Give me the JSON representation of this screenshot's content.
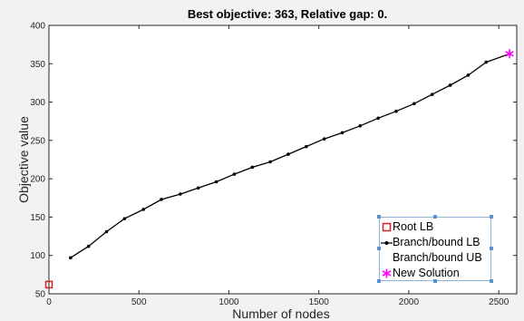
{
  "chart_data": {
    "type": "line",
    "title": "Best objective: 363, Relative gap: 0.",
    "xlabel": "Number of nodes",
    "ylabel": "Objective value",
    "xlim": [
      0,
      2600
    ],
    "ylim": [
      50,
      400
    ],
    "xticks": [
      0,
      500,
      1000,
      1500,
      2000,
      2500
    ],
    "yticks": [
      50,
      100,
      150,
      200,
      250,
      300,
      350,
      400
    ],
    "grid": false,
    "legend_position": "bottom-right",
    "series": [
      {
        "name": "Root LB",
        "marker": "square",
        "color": "#d62222",
        "points": [
          {
            "x": 0,
            "y": 62
          }
        ]
      },
      {
        "name": "Branch/bound LB",
        "marker": "dot",
        "color": "#000000",
        "points": [
          {
            "x": 120,
            "y": 97
          },
          {
            "x": 220,
            "y": 112
          },
          {
            "x": 320,
            "y": 131
          },
          {
            "x": 420,
            "y": 148
          },
          {
            "x": 525,
            "y": 160
          },
          {
            "x": 625,
            "y": 173
          },
          {
            "x": 730,
            "y": 180
          },
          {
            "x": 830,
            "y": 188
          },
          {
            "x": 930,
            "y": 196
          },
          {
            "x": 1030,
            "y": 206
          },
          {
            "x": 1130,
            "y": 215
          },
          {
            "x": 1230,
            "y": 222
          },
          {
            "x": 1330,
            "y": 232
          },
          {
            "x": 1430,
            "y": 242
          },
          {
            "x": 1530,
            "y": 252
          },
          {
            "x": 1630,
            "y": 260
          },
          {
            "x": 1730,
            "y": 269
          },
          {
            "x": 1830,
            "y": 279
          },
          {
            "x": 1930,
            "y": 288
          },
          {
            "x": 2030,
            "y": 298
          },
          {
            "x": 2130,
            "y": 310
          },
          {
            "x": 2230,
            "y": 322
          },
          {
            "x": 2330,
            "y": 335
          },
          {
            "x": 2430,
            "y": 352
          },
          {
            "x": 2560,
            "y": 363
          }
        ]
      },
      {
        "name": "Branch/bound UB",
        "marker": "none",
        "color": "#000000",
        "points": []
      },
      {
        "name": "New Solution",
        "marker": "asterisk",
        "color": "#ff00ff",
        "points": [
          {
            "x": 2560,
            "y": 363
          }
        ]
      }
    ]
  }
}
